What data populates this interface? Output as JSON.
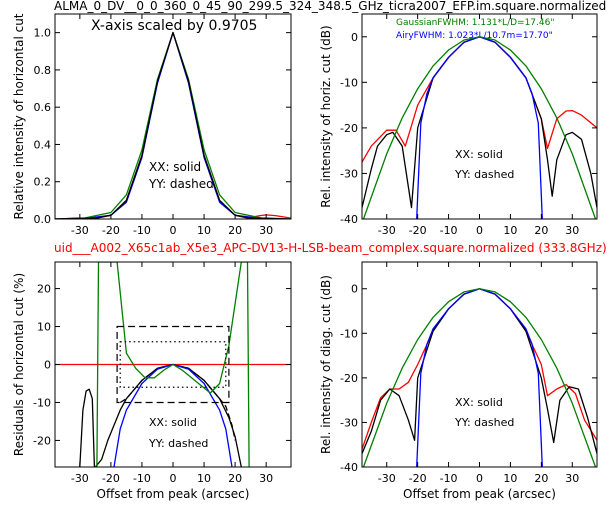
{
  "figure": {
    "top_title": "ALMA_0_DV__0_0_360_0_45_90_299.5_324_348.5_GHz_ticra2007_EFP.im.square.normalized",
    "mid_title": "uid___A002_X65c1ab_X5e3_APC-DV13-H-LSB-beam_complex.square.normalized (333.8GHz)",
    "mid_title_color": "#ff0000"
  },
  "colors": {
    "xx_black": "#000000",
    "red": "#ff0000",
    "blue": "#0000ff",
    "green": "#008000"
  },
  "chart_data": [
    {
      "type": "line",
      "panel": "top-left",
      "xlabel": "",
      "ylabel": "Relative intensity of horizontal cut",
      "xlim": [
        -38,
        38
      ],
      "ylim": [
        0,
        1.1
      ],
      "xticks": [
        -30,
        -20,
        -10,
        0,
        10,
        20,
        30
      ],
      "yticks": [
        0.0,
        0.2,
        0.4,
        0.6,
        0.8,
        1.0
      ],
      "ytick_labels": [
        "0.0",
        "0.2",
        "0.4",
        "0.6",
        "0.8",
        "1.0"
      ],
      "annotations": [
        {
          "text": "X-axis scaled by 0.9705",
          "location": "top-left"
        },
        {
          "text": "XX: solid",
          "location": "lower-middle"
        },
        {
          "text": "YY: dashed",
          "location": "lower-middle"
        }
      ],
      "series": [
        {
          "color": "#ff0000",
          "style": "solid",
          "x": [
            -38,
            -30,
            -25,
            -20,
            -15,
            -10,
            -5,
            0,
            5,
            10,
            15,
            20,
            24,
            28,
            30,
            33,
            38
          ],
          "y": [
            0.0,
            0.005,
            0.003,
            0.02,
            0.1,
            0.34,
            0.74,
            1.0,
            0.74,
            0.34,
            0.1,
            0.02,
            0.005,
            0.018,
            0.022,
            0.018,
            0.005
          ]
        },
        {
          "color": "#0000ff",
          "style": "solid",
          "x": [
            -38,
            -30,
            -20,
            -15,
            -10,
            -5,
            0,
            5,
            10,
            15,
            20,
            30,
            38
          ],
          "y": [
            0.0,
            0.0,
            0.02,
            0.09,
            0.33,
            0.73,
            1.0,
            0.73,
            0.33,
            0.09,
            0.02,
            0.0,
            0.0
          ]
        },
        {
          "color": "#008000",
          "style": "solid",
          "x": [
            -38,
            -30,
            -20,
            -15,
            -10,
            -5,
            0,
            5,
            10,
            15,
            20,
            30,
            38
          ],
          "y": [
            0.0,
            0.0,
            0.035,
            0.13,
            0.37,
            0.75,
            1.0,
            0.75,
            0.37,
            0.13,
            0.035,
            0.0,
            0.0
          ]
        },
        {
          "color": "#000000",
          "style": "solid",
          "x": [
            -38,
            -30,
            -25,
            -20,
            -15,
            -10,
            -5,
            0,
            5,
            10,
            15,
            20,
            25,
            30,
            38
          ],
          "y": [
            0.0,
            0.005,
            0.003,
            0.02,
            0.1,
            0.34,
            0.74,
            1.0,
            0.74,
            0.34,
            0.1,
            0.02,
            0.003,
            0.005,
            0.0
          ]
        }
      ]
    },
    {
      "type": "line",
      "panel": "top-right",
      "xlabel": "",
      "ylabel": "Rel. intensity of horiz. cut (dB)",
      "xlim": [
        -38,
        38
      ],
      "ylim": [
        -40,
        5
      ],
      "xticks": [
        -30,
        -20,
        -10,
        0,
        10,
        20,
        30
      ],
      "yticks": [
        -40,
        -30,
        -20,
        -10,
        0
      ],
      "annotations": [
        {
          "text": "GaussianFWHM: 1.131*L/D=17.46\"",
          "color": "#008000"
        },
        {
          "text": "AiryFWHM: 1.023*L/10.7m=17.70\"",
          "color": "#0000ff"
        },
        {
          "text": "XX: solid"
        },
        {
          "text": "YY: dashed"
        }
      ],
      "series": [
        {
          "color": "#ff0000",
          "style": "solid",
          "x": [
            -38,
            -35,
            -30,
            -27,
            -24,
            -20,
            -15,
            -10,
            -5,
            0,
            5,
            10,
            15,
            20,
            22,
            25,
            28,
            30,
            33,
            38
          ],
          "y": [
            -27.5,
            -24,
            -20.5,
            -20.5,
            -24,
            -15,
            -9,
            -4.5,
            -1.2,
            0,
            -1.2,
            -4.5,
            -9,
            -18,
            -24.5,
            -18,
            -16.3,
            -16.2,
            -17.2,
            -20
          ]
        },
        {
          "color": "#000000",
          "style": "solid",
          "x": [
            -38,
            -35,
            -33,
            -30,
            -28,
            -25,
            -22,
            -20,
            -15,
            -10,
            -5,
            0,
            5,
            10,
            15,
            20,
            22,
            23.5,
            25,
            28,
            30,
            33,
            36,
            38
          ],
          "y": [
            -37.5,
            -29,
            -24,
            -21.5,
            -21,
            -24,
            -37.5,
            -20,
            -9,
            -4.5,
            -1.2,
            0,
            -1.2,
            -4.5,
            -9,
            -18,
            -27,
            -35,
            -27,
            -21.5,
            -21,
            -22.5,
            -30,
            -37.5
          ]
        },
        {
          "color": "#0000ff",
          "style": "solid",
          "x": [
            -20.3,
            -19,
            -17,
            -15,
            -10,
            -5,
            0,
            5,
            10,
            15,
            17,
            19,
            20.3
          ],
          "y": [
            -40,
            -19,
            -12.5,
            -9,
            -4.5,
            -1.2,
            0,
            -1.2,
            -4.5,
            -9,
            -12.5,
            -19,
            -40
          ]
        },
        {
          "color": "#008000",
          "style": "solid",
          "x": [
            -37.5,
            -30,
            -25,
            -20,
            -15,
            -10,
            -5,
            0,
            5,
            10,
            15,
            20,
            25,
            30,
            37.5
          ],
          "y": [
            -40,
            -25.7,
            -17.8,
            -11.4,
            -6.4,
            -2.9,
            -0.7,
            0,
            -0.7,
            -2.9,
            -6.4,
            -11.4,
            -17.8,
            -25.7,
            -40
          ]
        }
      ]
    },
    {
      "type": "line",
      "panel": "bottom-left",
      "xlabel": "Offset from peak (arcsec)",
      "ylabel": "Residuals of horizontal cut (%)",
      "xlim": [
        -38,
        38
      ],
      "ylim": [
        -27,
        27
      ],
      "xticks": [
        -30,
        -20,
        -10,
        0,
        10,
        20,
        30
      ],
      "yticks": [
        -20,
        -10,
        0,
        10,
        20
      ],
      "annotations": [
        {
          "text": "XX: solid"
        },
        {
          "text": "YY: dashed"
        }
      ],
      "series": [
        {
          "color": "#ff0000",
          "style": "solid",
          "x": [
            -38,
            38
          ],
          "y": [
            0,
            0
          ]
        },
        {
          "color": "#000000",
          "style": "solid",
          "x": [
            -25,
            -23,
            -21,
            -19,
            -17,
            -15,
            -10,
            -5,
            0,
            5,
            10,
            15,
            18,
            20,
            22
          ],
          "y": [
            -27,
            -25,
            -20,
            -16,
            -12,
            -9,
            -4.2,
            -1,
            0,
            -1,
            -4.2,
            -9,
            -14,
            -19,
            -27
          ]
        },
        {
          "color": "#000000",
          "style": "solid",
          "x": [
            -30,
            -29,
            -28,
            -27,
            -26,
            -25.3
          ],
          "y": [
            -27,
            -12,
            -7,
            -6.5,
            -9,
            -27
          ]
        },
        {
          "color": "#000000",
          "style": "dashed",
          "x": [
            -17,
            -15,
            -10,
            -5,
            0,
            5,
            10,
            15,
            17,
            19,
            20
          ],
          "y": [
            -10,
            -9,
            -4.2,
            -1,
            0,
            -1,
            -4.2,
            -9,
            -11,
            -16,
            -20
          ]
        },
        {
          "color": "#0000ff",
          "style": "solid",
          "x": [
            -19,
            -17,
            -15,
            -10,
            -5,
            0,
            5,
            10,
            15,
            17,
            19
          ],
          "y": [
            -27,
            -17,
            -12,
            -5,
            -1.2,
            0,
            -1.2,
            -5,
            -12,
            -17,
            -27
          ]
        },
        {
          "color": "#008000",
          "style": "solid",
          "x": [
            -24.5,
            -24,
            -22,
            -18,
            -15,
            -12,
            -9,
            -6,
            -3,
            0,
            3,
            6,
            9,
            12,
            15,
            18,
            22,
            24,
            24.5
          ],
          "y": [
            -27,
            27,
            27,
            27,
            3,
            -1,
            -3.5,
            -3.5,
            -1.5,
            0,
            -1.5,
            -3.5,
            -5.5,
            -7.5,
            -5,
            5,
            27,
            27,
            -27
          ]
        }
      ],
      "boxes": [
        {
          "style": "dashed",
          "x": [
            -18,
            18
          ],
          "y": [
            -10,
            10
          ]
        },
        {
          "style": "dotted",
          "x": [
            -17,
            17
          ],
          "y": [
            -6,
            6
          ]
        }
      ]
    },
    {
      "type": "line",
      "panel": "bottom-right",
      "xlabel": "Offset from peak (arcsec)",
      "ylabel": "Rel. intensity of diag. cut (dB)",
      "xlim": [
        -38,
        38
      ],
      "ylim": [
        -40,
        6
      ],
      "xticks": [
        -30,
        -20,
        -10,
        0,
        10,
        20,
        30
      ],
      "yticks": [
        -40,
        -30,
        -20,
        -10,
        0
      ],
      "annotations": [
        {
          "text": "XX: solid"
        },
        {
          "text": "YY: dashed"
        }
      ],
      "series": [
        {
          "color": "#ff0000",
          "style": "solid",
          "x": [
            -38,
            -35,
            -32,
            -29,
            -26,
            -23,
            -20,
            -15,
            -10,
            -5,
            0,
            5,
            10,
            15,
            20,
            22,
            25,
            28,
            31,
            34,
            38
          ],
          "y": [
            -36,
            -30,
            -24.5,
            -22.5,
            -22.5,
            -21,
            -17,
            -9.5,
            -4.5,
            -1.2,
            0,
            -1.2,
            -4.5,
            -9.5,
            -17,
            -24,
            -22.5,
            -21.5,
            -23.5,
            -29.5,
            -34
          ]
        },
        {
          "color": "#000000",
          "style": "solid",
          "x": [
            -38,
            -35,
            -32,
            -29,
            -26,
            -23,
            -21,
            -20,
            -15,
            -10,
            -5,
            0,
            5,
            10,
            15,
            20,
            22,
            24,
            26,
            29,
            32,
            35,
            38
          ],
          "y": [
            -37,
            -32,
            -25,
            -22.5,
            -24,
            -29.5,
            -34,
            -20,
            -9.5,
            -4.5,
            -1.2,
            0,
            -1.2,
            -4.5,
            -9.5,
            -20,
            -27,
            -34.5,
            -25,
            -22,
            -22.5,
            -29,
            -37
          ]
        },
        {
          "color": "#0000ff",
          "style": "solid",
          "x": [
            -20.3,
            -19,
            -17,
            -15,
            -10,
            -5,
            0,
            5,
            10,
            15,
            17,
            19,
            20.3
          ],
          "y": [
            -40,
            -19,
            -12.5,
            -9,
            -4.5,
            -1.2,
            0,
            -1.2,
            -4.5,
            -9,
            -12.5,
            -19,
            -40
          ]
        },
        {
          "color": "#008000",
          "style": "solid",
          "x": [
            -37.5,
            -30,
            -25,
            -20,
            -15,
            -10,
            -5,
            0,
            5,
            10,
            15,
            20,
            25,
            30,
            37.5
          ],
          "y": [
            -40,
            -25.7,
            -17.8,
            -11.4,
            -6.4,
            -2.9,
            -0.7,
            0,
            -0.7,
            -2.9,
            -6.4,
            -11.4,
            -17.8,
            -25.7,
            -40
          ]
        }
      ]
    }
  ]
}
